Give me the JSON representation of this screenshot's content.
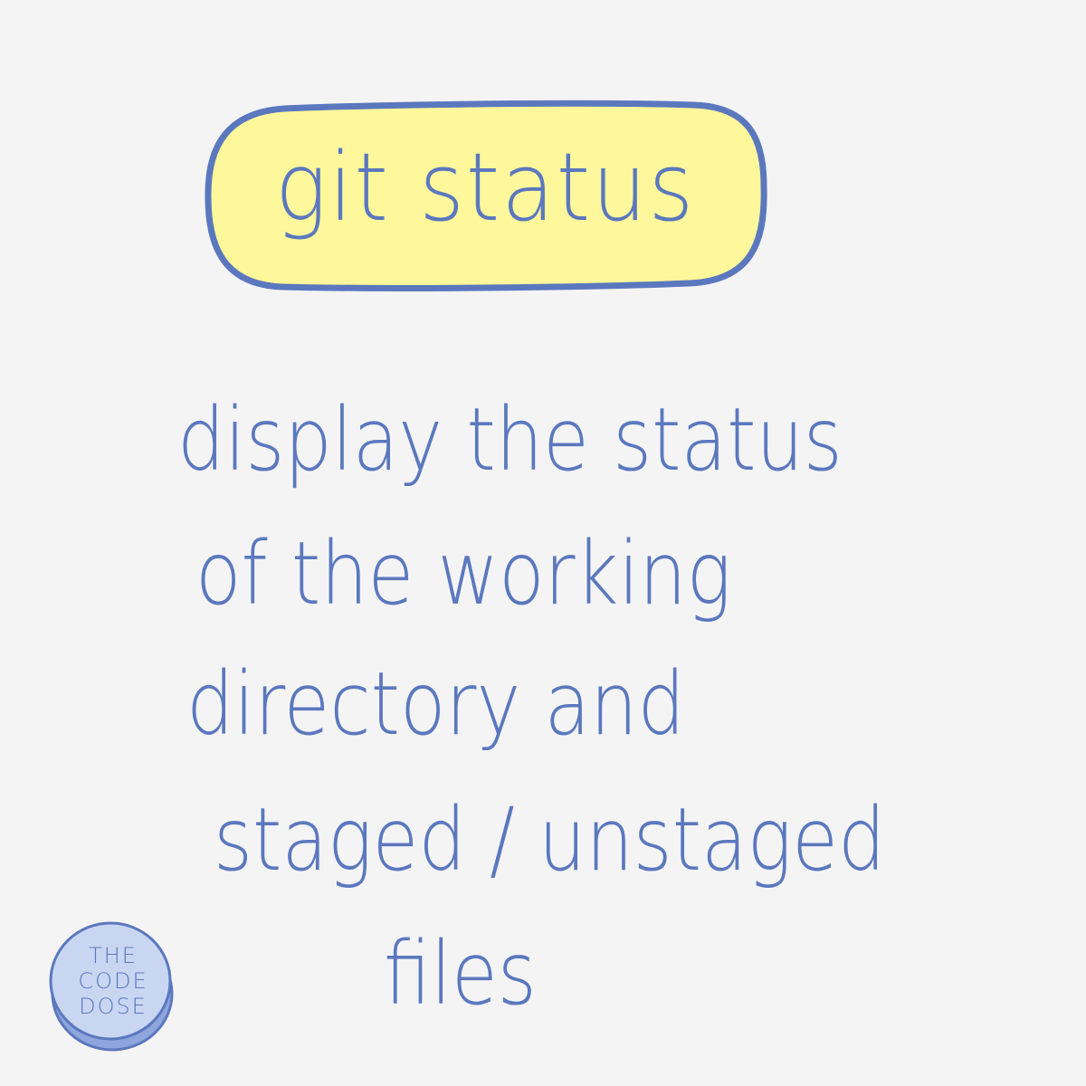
{
  "title": "git status",
  "description_lines": [
    "display the status",
    "of the working",
    "directory and",
    "staged / unstaged",
    "files"
  ],
  "logo": {
    "lines": [
      "THE",
      "CODE",
      "DOSE"
    ]
  },
  "colors": {
    "background": "#f4f4f5",
    "ink": "#5b78be",
    "pill_fill": "#fff79b",
    "logo_fill": "#c9d6f2",
    "logo_shadow": "#8ea6dd"
  }
}
